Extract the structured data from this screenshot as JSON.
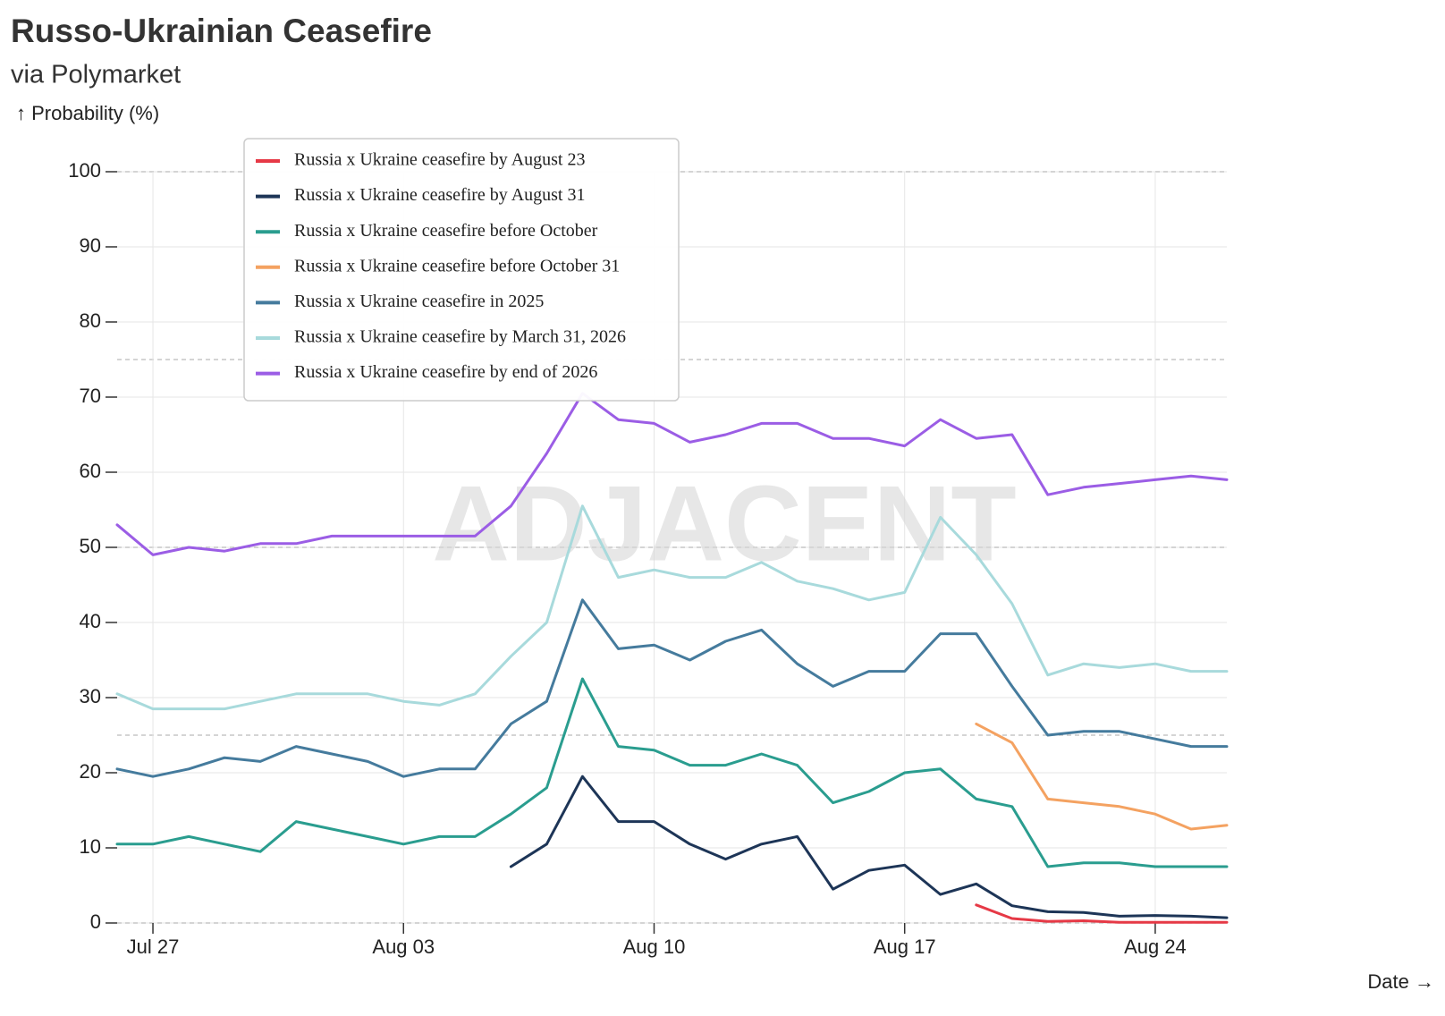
{
  "chart_data": {
    "type": "line",
    "title": "Russo-Ukrainian Ceasefire",
    "subtitle": "via Polymarket",
    "y_label": "↑ Probability (%)",
    "x_label": "Date →",
    "watermark": "ADJACENT",
    "x": [
      "Jul 26",
      "Jul 27",
      "Jul 28",
      "Jul 29",
      "Jul 30",
      "Jul 31",
      "Aug 01",
      "Aug 02",
      "Aug 03",
      "Aug 04",
      "Aug 05",
      "Aug 06",
      "Aug 07",
      "Aug 08",
      "Aug 09",
      "Aug 10",
      "Aug 11",
      "Aug 12",
      "Aug 13",
      "Aug 14",
      "Aug 15",
      "Aug 16",
      "Aug 17",
      "Aug 18",
      "Aug 19",
      "Aug 20",
      "Aug 21",
      "Aug 22",
      "Aug 23",
      "Aug 24",
      "Aug 25",
      "Aug 26"
    ],
    "xticks": [
      "Jul 27",
      "Aug 03",
      "Aug 10",
      "Aug 17",
      "Aug 24"
    ],
    "ylim": [
      0,
      100
    ],
    "yticks": [
      0,
      10,
      20,
      30,
      40,
      50,
      60,
      70,
      80,
      90,
      100
    ],
    "reference_lines": [
      0,
      25,
      50,
      75,
      100
    ],
    "grid": true,
    "series": [
      {
        "name": "Russia x Ukraine ceasefire by August 23",
        "color": "#e63946",
        "values": [
          null,
          null,
          null,
          null,
          null,
          null,
          null,
          null,
          null,
          null,
          null,
          null,
          null,
          null,
          null,
          null,
          null,
          null,
          null,
          null,
          null,
          null,
          null,
          null,
          2.4,
          0.6,
          0.2,
          0.3,
          0.1,
          0.1,
          0.1,
          0.1
        ]
      },
      {
        "name": "Russia x Ukraine ceasefire by August 31",
        "color": "#1d3557",
        "values": [
          null,
          null,
          null,
          null,
          null,
          null,
          null,
          null,
          null,
          null,
          null,
          7.5,
          10.5,
          19.5,
          13.5,
          13.5,
          10.5,
          8.5,
          10.5,
          11.5,
          4.5,
          7,
          7.7,
          3.8,
          5.2,
          2.3,
          1.5,
          1.4,
          0.9,
          1,
          0.9,
          0.7
        ]
      },
      {
        "name": "Russia x Ukraine ceasefire before October",
        "color": "#2a9d8f",
        "values": [
          10.5,
          10.5,
          11.5,
          10.5,
          9.5,
          13.5,
          12.5,
          11.5,
          10.5,
          11.5,
          11.5,
          14.5,
          18,
          32.5,
          23.5,
          23,
          21,
          21,
          22.5,
          21,
          16,
          17.5,
          20,
          20.5,
          16.5,
          15.5,
          7.5,
          8,
          8,
          7.5,
          7.5,
          7.5
        ]
      },
      {
        "name": "Russia x Ukraine ceasefire before October 31",
        "color": "#f4a261",
        "values": [
          null,
          null,
          null,
          null,
          null,
          null,
          null,
          null,
          null,
          null,
          null,
          null,
          null,
          null,
          null,
          null,
          null,
          null,
          null,
          null,
          null,
          null,
          null,
          null,
          26.5,
          24,
          16.5,
          16,
          15.5,
          14.5,
          12.5,
          13
        ]
      },
      {
        "name": "Russia x Ukraine ceasefire in 2025",
        "color": "#457b9d",
        "values": [
          20.5,
          19.5,
          20.5,
          22,
          21.5,
          23.5,
          22.5,
          21.5,
          19.5,
          20.5,
          20.5,
          26.5,
          29.5,
          43,
          36.5,
          37,
          35,
          37.5,
          39,
          34.5,
          31.5,
          33.5,
          33.5,
          38.5,
          38.5,
          31.5,
          25,
          25.5,
          25.5,
          24.5,
          23.5,
          23.5
        ]
      },
      {
        "name": "Russia x Ukraine ceasefire by March 31, 2026",
        "color": "#a8dadc",
        "values": [
          30.5,
          28.5,
          28.5,
          28.5,
          29.5,
          30.5,
          30.5,
          30.5,
          29.5,
          29,
          30.5,
          35.5,
          40,
          55.5,
          46,
          47,
          46,
          46,
          48,
          45.5,
          44.5,
          43,
          44,
          54,
          49,
          42.5,
          33,
          34.5,
          34,
          34.5,
          33.5,
          33.5
        ]
      },
      {
        "name": "Russia x Ukraine ceasefire by end of 2026",
        "color": "#9b5de5",
        "values": [
          53,
          49,
          50,
          49.5,
          50.5,
          50.5,
          51.5,
          51.5,
          51.5,
          51.5,
          51.5,
          55.5,
          62.5,
          70.5,
          67,
          66.5,
          64,
          65,
          66.5,
          66.5,
          64.5,
          64.5,
          63.5,
          67,
          64.5,
          65,
          57,
          58,
          58.5,
          59,
          59.5,
          59
        ]
      }
    ]
  }
}
